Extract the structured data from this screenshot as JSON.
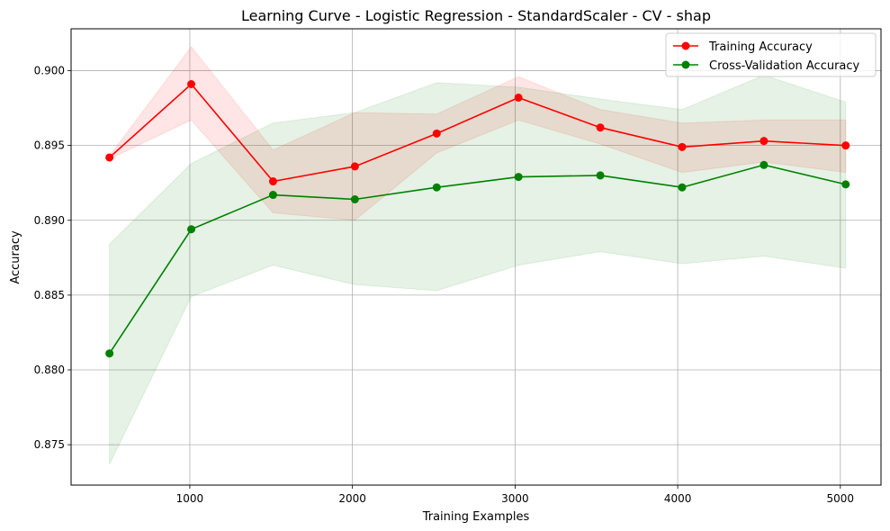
{
  "chart_data": {
    "type": "line",
    "title": "Learning Curve - Logistic Regression - StandardScaler - CV - shap",
    "xlabel": "Training Examples",
    "ylabel": "Accuracy",
    "xlim": [
      270,
      5250
    ],
    "ylim": [
      0.8723,
      0.9028
    ],
    "xticks": [
      1000,
      2000,
      3000,
      4000,
      5000
    ],
    "yticks": [
      0.875,
      0.88,
      0.885,
      0.89,
      0.895,
      0.9
    ],
    "ytick_labels": [
      "0.875",
      "0.880",
      "0.885",
      "0.890",
      "0.895",
      "0.900"
    ],
    "grid": true,
    "legend": "top-right",
    "x": [
      506,
      1009,
      1512,
      2015,
      2518,
      3021,
      3524,
      4027,
      4530,
      5033
    ],
    "series": [
      {
        "name": "Training Accuracy",
        "color": "#ff0000",
        "values": [
          0.8942,
          0.8991,
          0.8926,
          0.8936,
          0.8958,
          0.8982,
          0.8962,
          0.8949,
          0.8953,
          0.895
        ],
        "band_lower": [
          0.8941,
          0.8967,
          0.8905,
          0.89,
          0.8945,
          0.8967,
          0.8951,
          0.8932,
          0.8939,
          0.8932
        ],
        "band_upper": [
          0.8943,
          0.9016,
          0.8947,
          0.8972,
          0.8971,
          0.8996,
          0.8974,
          0.8965,
          0.8967,
          0.8967
        ]
      },
      {
        "name": "Cross-Validation Accuracy",
        "color": "#008000",
        "values": [
          0.8811,
          0.8894,
          0.8917,
          0.8914,
          0.8922,
          0.8929,
          0.893,
          0.8922,
          0.8937,
          0.8924
        ],
        "band_lower": [
          0.8737,
          0.8849,
          0.887,
          0.8857,
          0.8853,
          0.887,
          0.8879,
          0.8871,
          0.8876,
          0.8868
        ],
        "band_upper": [
          0.8884,
          0.8938,
          0.8965,
          0.8972,
          0.8992,
          0.8989,
          0.8981,
          0.8974,
          0.8997,
          0.8979
        ]
      }
    ]
  }
}
